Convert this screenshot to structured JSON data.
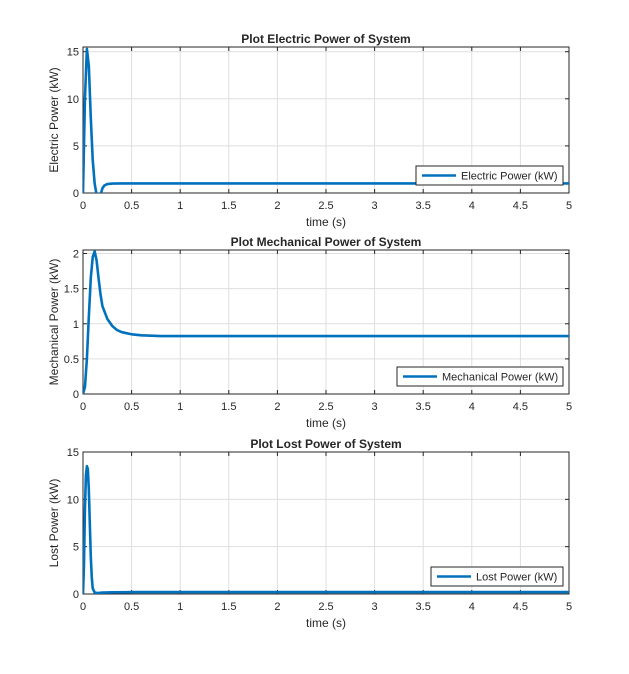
{
  "figure": {
    "background": "#ffffff"
  },
  "chart_data": [
    {
      "type": "line",
      "title": "Plot Electric Power of System",
      "xlabel": "time (s)",
      "ylabel": "Electric Power (kW)",
      "xlim": [
        0,
        5
      ],
      "ylim": [
        0,
        15.5
      ],
      "xticks": [
        0,
        0.5,
        1,
        1.5,
        2,
        2.5,
        3,
        3.5,
        4,
        4.5,
        5
      ],
      "xticklabels": [
        "0",
        "0.5",
        "1",
        "1.5",
        "2",
        "2.5",
        "3",
        "3.5",
        "4",
        "4.5",
        "5"
      ],
      "yticks": [
        0,
        5,
        10,
        15
      ],
      "yticklabels": [
        "0",
        "5",
        "10",
        "15"
      ],
      "grid": true,
      "legend_position": "bottom-right",
      "series": [
        {
          "name": "Electric Power (kW)",
          "color": "#0072bd",
          "x": [
            0,
            0.02,
            0.04,
            0.06,
            0.08,
            0.1,
            0.12,
            0.14,
            0.16,
            0.18,
            0.2,
            0.22,
            0.25,
            0.3,
            0.4,
            0.5,
            0.7,
            1,
            1.5,
            2,
            3,
            4,
            5
          ],
          "y": [
            0,
            10,
            15.3,
            13.5,
            8,
            3.5,
            1,
            -0.2,
            -0.6,
            -0.2,
            0.5,
            0.8,
            0.95,
            1.0,
            1.02,
            1.02,
            1.02,
            1.02,
            1.02,
            1.02,
            1.02,
            1.02,
            1.02
          ]
        }
      ]
    },
    {
      "type": "line",
      "title": "Plot Mechanical Power of System",
      "xlabel": "time (s)",
      "ylabel": "Mechanical Power (kW)",
      "xlim": [
        0,
        5
      ],
      "ylim": [
        0,
        2.05
      ],
      "xticks": [
        0,
        0.5,
        1,
        1.5,
        2,
        2.5,
        3,
        3.5,
        4,
        4.5,
        5
      ],
      "xticklabels": [
        "0",
        "0.5",
        "1",
        "1.5",
        "2",
        "2.5",
        "3",
        "3.5",
        "4",
        "4.5",
        "5"
      ],
      "yticks": [
        0,
        0.5,
        1,
        1.5,
        2
      ],
      "yticklabels": [
        "0",
        "0.5",
        "1",
        "1.5",
        "2"
      ],
      "grid": true,
      "legend_position": "bottom-right",
      "series": [
        {
          "name": "Mechanical Power (kW)",
          "color": "#0072bd",
          "x": [
            0,
            0.02,
            0.04,
            0.06,
            0.08,
            0.1,
            0.12,
            0.14,
            0.16,
            0.18,
            0.2,
            0.25,
            0.3,
            0.35,
            0.4,
            0.5,
            0.6,
            0.7,
            0.8,
            1,
            1.5,
            2,
            3,
            4,
            5
          ],
          "y": [
            0,
            0.1,
            0.5,
            1.1,
            1.65,
            1.95,
            2.03,
            1.9,
            1.65,
            1.42,
            1.25,
            1.07,
            0.97,
            0.91,
            0.88,
            0.85,
            0.835,
            0.83,
            0.825,
            0.825,
            0.825,
            0.825,
            0.825,
            0.825,
            0.825
          ]
        }
      ]
    },
    {
      "type": "line",
      "title": "Plot Lost Power of System",
      "xlabel": "time (s)",
      "ylabel": "Lost Power (kW)",
      "xlim": [
        0,
        5
      ],
      "ylim": [
        0,
        15
      ],
      "xticks": [
        0,
        0.5,
        1,
        1.5,
        2,
        2.5,
        3,
        3.5,
        4,
        4.5,
        5
      ],
      "xticklabels": [
        "0",
        "0.5",
        "1",
        "1.5",
        "2",
        "2.5",
        "3",
        "3.5",
        "4",
        "4.5",
        "5"
      ],
      "yticks": [
        0,
        5,
        10,
        15
      ],
      "yticklabels": [
        "0",
        "5",
        "10",
        "15"
      ],
      "grid": true,
      "legend_position": "bottom-right",
      "series": [
        {
          "name": "Lost Power (kW)",
          "color": "#0072bd",
          "x": [
            0,
            0.01,
            0.02,
            0.03,
            0.04,
            0.05,
            0.06,
            0.07,
            0.08,
            0.09,
            0.1,
            0.12,
            0.15,
            0.2,
            0.3,
            0.5,
            1,
            2,
            3,
            4,
            5
          ],
          "y": [
            0,
            3,
            9,
            12.5,
            13.5,
            13.2,
            11,
            7.5,
            4,
            1.8,
            0.6,
            0.15,
            0.1,
            0.15,
            0.18,
            0.2,
            0.2,
            0.2,
            0.2,
            0.2,
            0.2
          ]
        }
      ]
    }
  ]
}
